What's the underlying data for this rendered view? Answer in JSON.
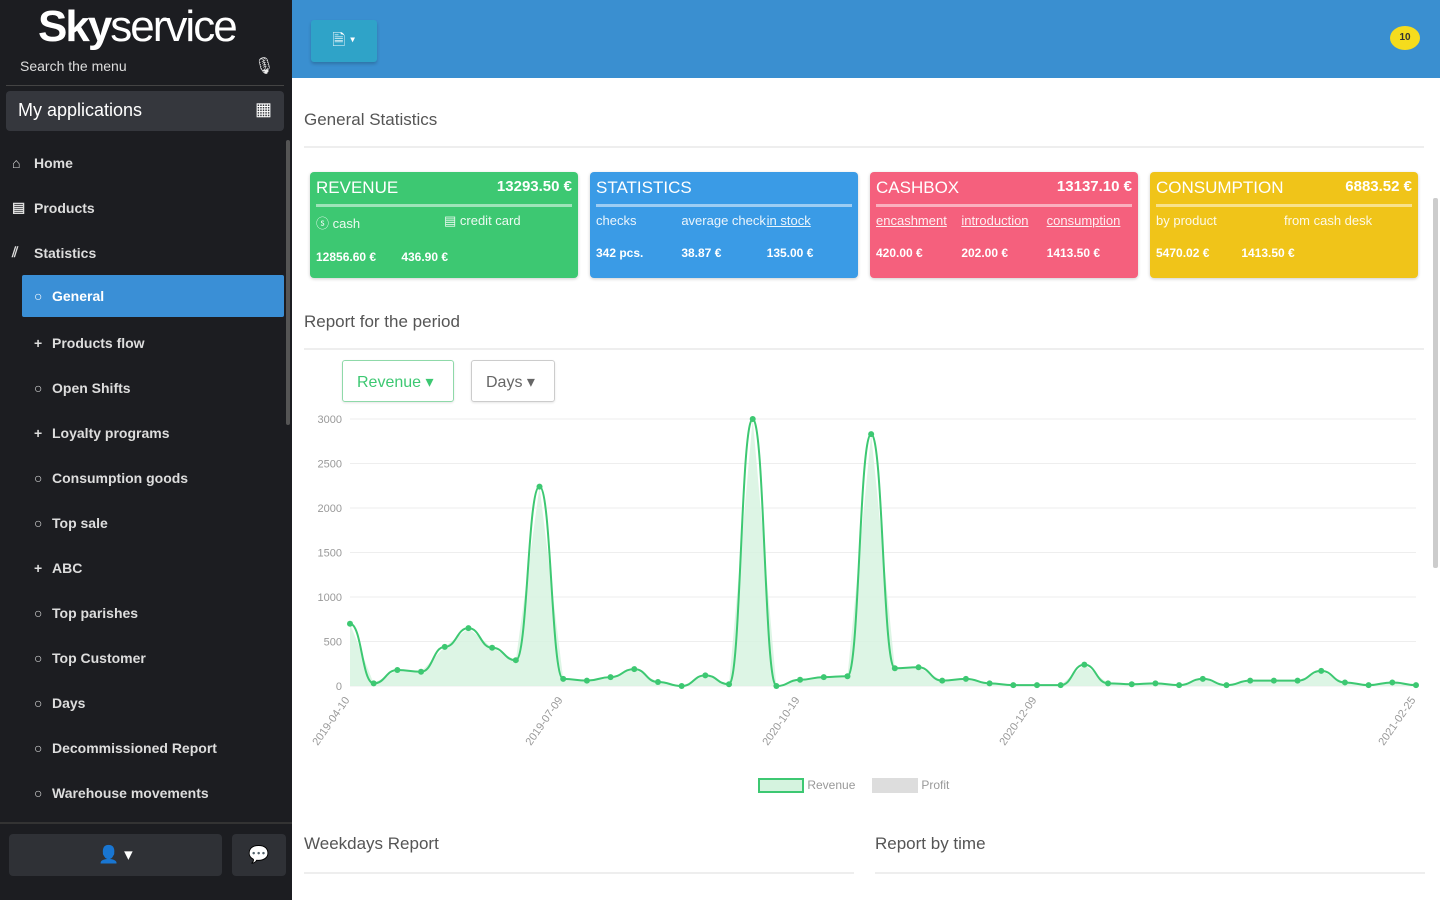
{
  "sidebar": {
    "logo_bold": "Sky",
    "logo_rest": "service",
    "search_placeholder": "Search the menu",
    "my_apps": "My applications",
    "items": [
      {
        "label": "Home",
        "icon": "⌂",
        "sub": false
      },
      {
        "label": "Products",
        "icon": "▤",
        "sub": false
      },
      {
        "label": "Statistics",
        "icon": "⫽",
        "sub": false
      },
      {
        "label": "General",
        "icon": "○",
        "sub": true,
        "active": true
      },
      {
        "label": "Products flow",
        "icon": "+",
        "sub": true
      },
      {
        "label": "Open Shifts",
        "icon": "○",
        "sub": true
      },
      {
        "label": "Loyalty programs",
        "icon": "+",
        "sub": true
      },
      {
        "label": "Consumption goods",
        "icon": "○",
        "sub": true
      },
      {
        "label": "Top sale",
        "icon": "○",
        "sub": true
      },
      {
        "label": "ABC",
        "icon": "+",
        "sub": true
      },
      {
        "label": "Top parishes",
        "icon": "○",
        "sub": true
      },
      {
        "label": "Top Customer",
        "icon": "○",
        "sub": true
      },
      {
        "label": "Days",
        "icon": "○",
        "sub": true
      },
      {
        "label": "Decommissioned Report",
        "icon": "○",
        "sub": true
      },
      {
        "label": "Warehouse movements",
        "icon": "○",
        "sub": true
      }
    ],
    "user_btn": "👤 ▾",
    "chat_btn": "💬"
  },
  "topbar": {
    "doc_btn": "🗎 ▾",
    "notifications": "10"
  },
  "main": {
    "general_title": "General Statistics",
    "cards": [
      {
        "title": "REVENUE",
        "value": "13293.50 €",
        "color": "#3dc872",
        "labels": [
          "ⓢ cash",
          "▤ credit card"
        ],
        "values": [
          "12856.60 €",
          "436.90 €"
        ],
        "underline": false
      },
      {
        "title": "STATISTICS",
        "value": "",
        "color": "#3a9be6",
        "labels": [
          "checks",
          "average check",
          "in stock"
        ],
        "values": [
          "342 pcs.",
          "38.87 €",
          "135.00 €"
        ],
        "underline": false
      },
      {
        "title": "CASHBOX",
        "value": "13137.10 €",
        "color": "#f5607d",
        "labels": [
          "encashment",
          "introduction",
          "consumption"
        ],
        "values": [
          "420.00 €",
          "202.00 €",
          "1413.50 €"
        ],
        "underline": true
      },
      {
        "title": "CONSUMPTION",
        "value": "6883.52 €",
        "color": "#f0c419",
        "labels": [
          "by product",
          "from cash desk"
        ],
        "values": [
          "5470.02 €",
          "1413.50 €"
        ],
        "underline": false
      }
    ],
    "period_title": "Report for the period",
    "revenue_select": "Revenue ▾",
    "days_select": "Days ▾",
    "weekdays_title": "Weekdays Report",
    "bytime_title": "Report by time"
  },
  "chart_data": {
    "type": "area",
    "ylim": [
      0,
      3000
    ],
    "yticks": [
      0,
      500,
      1000,
      1500,
      2000,
      2500,
      3000
    ],
    "tick_labels": [
      {
        "i": 0,
        "label": "2019-04-10"
      },
      {
        "i": 9,
        "label": "2019-07-09"
      },
      {
        "i": 19,
        "label": "2020-10-19"
      },
      {
        "i": 29,
        "label": "2020-12-09"
      },
      {
        "i": 45,
        "label": "2021-02-25"
      }
    ],
    "series": [
      {
        "name": "Revenue",
        "color": "#3dc872",
        "values": [
          700,
          30,
          180,
          160,
          440,
          650,
          430,
          290,
          2240,
          80,
          60,
          100,
          190,
          45,
          0,
          120,
          20,
          3000,
          0,
          70,
          100,
          110,
          2830,
          200,
          210,
          60,
          80,
          30,
          10,
          10,
          10,
          240,
          30,
          20,
          30,
          10,
          80,
          10,
          60,
          60,
          60,
          170,
          40,
          10,
          40,
          10
        ]
      },
      {
        "name": "Profit",
        "color": "#dddddd",
        "values": []
      }
    ],
    "legend": "bottom"
  }
}
